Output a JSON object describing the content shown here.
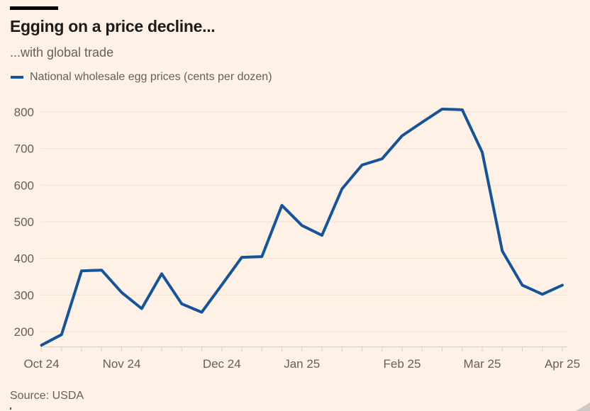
{
  "header": {
    "title": "Egging on a price decline...",
    "subtitle": "...with global trade"
  },
  "legend": {
    "label": "National wholesale egg prices (cents per dozen)"
  },
  "footer": {
    "source": "Source: USDA"
  },
  "colors": {
    "background": "#FFF1E5",
    "line": "#14549C",
    "grid": "#F2E0D0",
    "axis": "#E2CFBE",
    "text": "#66605C",
    "title": "#1E1C1A",
    "topbar": "#000000",
    "resize_handle": "#CDC9C5"
  },
  "chart_data": {
    "type": "line",
    "title": "Egging on a price decline...",
    "subtitle": "...with global trade",
    "ylabel": "",
    "xlabel": "",
    "legend_position": "top-left",
    "grid": "horizontal",
    "x_unit": "weekly observations, Oct 2024 - Apr 2025",
    "series": [
      {
        "name": "National wholesale egg prices (cents per dozen)",
        "values": [
          163,
          192,
          366,
          368,
          307,
          263,
          358,
          276,
          253,
          328,
          403,
          405,
          545,
          490,
          463,
          590,
          655,
          672,
          735,
          772,
          808,
          806,
          690,
          420,
          327,
          302,
          327
        ]
      }
    ],
    "x_tick_labels": [
      {
        "week": 0,
        "label": "Oct 24"
      },
      {
        "week": 4,
        "label": "Nov 24"
      },
      {
        "week": 9,
        "label": "Dec 24"
      },
      {
        "week": 13,
        "label": "Jan 25"
      },
      {
        "week": 18,
        "label": "Feb 25"
      },
      {
        "week": 22,
        "label": "Mar 25"
      },
      {
        "week": 26,
        "label": "Apr 25"
      }
    ],
    "yticks": [
      200,
      300,
      400,
      500,
      600,
      700,
      800
    ],
    "ylim": [
      159,
      815
    ]
  }
}
